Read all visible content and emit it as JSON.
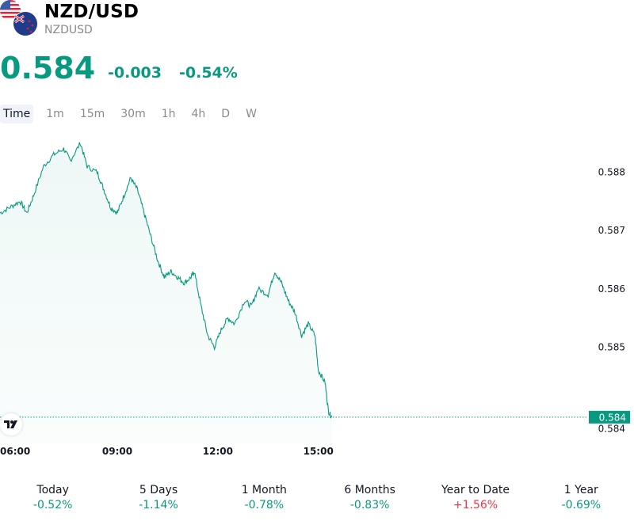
{
  "header": {
    "title": "NZD/USD",
    "symbol": "NZDUSD",
    "price": "0.584",
    "change": "-0.003",
    "change_pct": "-0.54%",
    "flags": [
      "us-flag-icon",
      "nz-flag-icon"
    ]
  },
  "timeframes": [
    "Time",
    "1m",
    "15m",
    "30m",
    "1h",
    "4h",
    "D",
    "W"
  ],
  "active_timeframe": "Time",
  "colors": {
    "accent": "#089981",
    "negative": "#f23645",
    "muted": "#8a8a8a"
  },
  "chart_data": {
    "type": "area",
    "x_ticks": [
      "06:00",
      "09:00",
      "12:00",
      "15:00"
    ],
    "y_ticks": [
      "0.588",
      "0.587",
      "0.586",
      "0.585",
      "0.584"
    ],
    "last_price_label": "0.584",
    "series": [
      {
        "values": [
          [
            5.5,
            0.5875
          ],
          [
            5.8,
            0.5876
          ],
          [
            6.1,
            0.5877
          ],
          [
            6.3,
            0.5875
          ],
          [
            6.5,
            0.5878
          ],
          [
            6.8,
            0.5883
          ],
          [
            7.1,
            0.5885
          ],
          [
            7.4,
            0.5886
          ],
          [
            7.6,
            0.5884
          ],
          [
            7.9,
            0.5887
          ],
          [
            8.1,
            0.5883
          ],
          [
            8.4,
            0.5882
          ],
          [
            8.6,
            0.5879
          ],
          [
            8.8,
            0.5876
          ],
          [
            9.0,
            0.5875
          ],
          [
            9.2,
            0.5878
          ],
          [
            9.4,
            0.5881
          ],
          [
            9.6,
            0.5879
          ],
          [
            9.8,
            0.5875
          ],
          [
            10.0,
            0.5871
          ],
          [
            10.2,
            0.5867
          ],
          [
            10.4,
            0.5864
          ],
          [
            10.6,
            0.5865
          ],
          [
            10.8,
            0.5864
          ],
          [
            11.0,
            0.5863
          ],
          [
            11.2,
            0.5864
          ],
          [
            11.3,
            0.5865
          ],
          [
            11.5,
            0.5859
          ],
          [
            11.7,
            0.5854
          ],
          [
            11.9,
            0.5852
          ],
          [
            12.1,
            0.5855
          ],
          [
            12.3,
            0.5857
          ],
          [
            12.5,
            0.5856
          ],
          [
            12.8,
            0.586
          ],
          [
            13.0,
            0.5859
          ],
          [
            13.2,
            0.5862
          ],
          [
            13.5,
            0.5861
          ],
          [
            13.7,
            0.5865
          ],
          [
            13.9,
            0.5863
          ],
          [
            14.1,
            0.586
          ],
          [
            14.3,
            0.5858
          ],
          [
            14.5,
            0.5854
          ],
          [
            14.7,
            0.5856
          ],
          [
            14.9,
            0.5854
          ],
          [
            15.0,
            0.5848
          ],
          [
            15.2,
            0.5846
          ],
          [
            15.3,
            0.5841
          ],
          [
            15.4,
            0.584
          ]
        ]
      }
    ],
    "xlim": [
      5.5,
      23.0
    ],
    "ylim": [
      0.58355,
      0.58898
    ]
  },
  "performance": [
    {
      "label": "Today",
      "value": "-0.52%",
      "dir": "neg"
    },
    {
      "label": "5 Days",
      "value": "-1.14%",
      "dir": "neg"
    },
    {
      "label": "1 Month",
      "value": "-0.78%",
      "dir": "neg"
    },
    {
      "label": "6 Months",
      "value": "-0.83%",
      "dir": "neg"
    },
    {
      "label": "Year to Date",
      "value": "+1.56%",
      "dir": "pos"
    },
    {
      "label": "1 Year",
      "value": "-0.69%",
      "dir": "neg"
    }
  ]
}
